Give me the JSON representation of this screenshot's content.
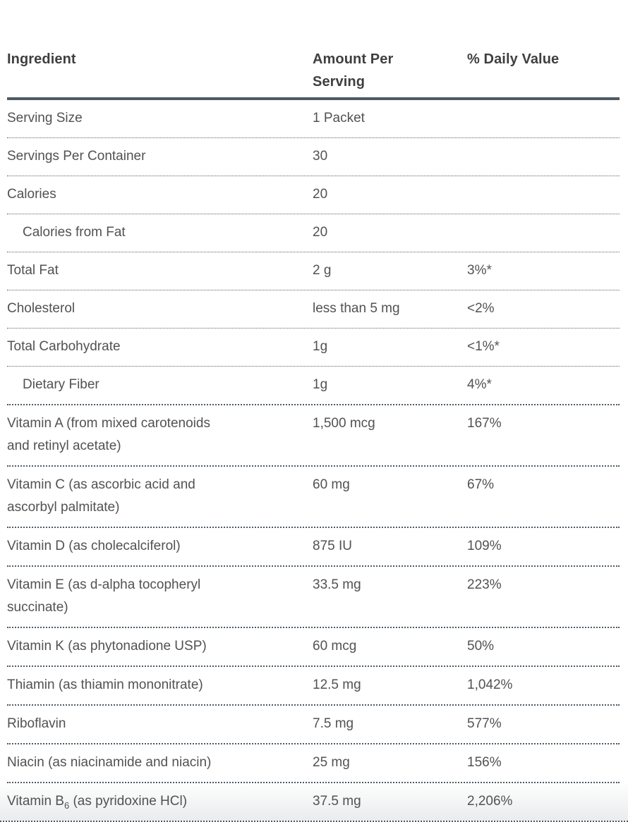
{
  "page": {
    "background": "#ffffff"
  },
  "colors": {
    "header_text": "#3f3f41",
    "body_text": "#525254",
    "header_rule": "#4e5a63",
    "divider_dots": "#55616b",
    "last_row_fade": "#e9ebec"
  },
  "table": {
    "columns": [
      {
        "id": "ingredient",
        "label": "Ingredient"
      },
      {
        "id": "amount",
        "label": "Amount Per\nServing"
      },
      {
        "id": "daily_value",
        "label": "% Daily Value"
      }
    ],
    "rows": [
      {
        "ingredient": "Serving Size",
        "amount": "1 Packet",
        "daily_value": "",
        "indent": false,
        "divider": "thin",
        "faded": false
      },
      {
        "ingredient": "Servings Per Container",
        "amount": "30",
        "daily_value": "",
        "indent": false,
        "divider": "thin",
        "faded": false
      },
      {
        "ingredient": "Calories",
        "amount": "20",
        "daily_value": "",
        "indent": false,
        "divider": "thin",
        "faded": false
      },
      {
        "ingredient": "Calories from Fat",
        "amount": "20",
        "daily_value": "",
        "indent": true,
        "divider": "thin",
        "faded": false
      },
      {
        "ingredient": "Total Fat",
        "amount": "2 g",
        "daily_value": "3%*",
        "indent": false,
        "divider": "thin",
        "faded": false
      },
      {
        "ingredient": "Cholesterol",
        "amount": "less than 5 mg",
        "daily_value": "<2%",
        "indent": false,
        "divider": "thin",
        "faded": false
      },
      {
        "ingredient": "Total Carbohydrate",
        "amount": "1g",
        "daily_value": "<1%*",
        "indent": false,
        "divider": "thin",
        "faded": false
      },
      {
        "ingredient": "Dietary Fiber",
        "amount": "1g",
        "daily_value": "4%*",
        "indent": true,
        "divider": "thick",
        "faded": false
      },
      {
        "ingredient": "Vitamin A (from mixed carotenoids\nand retinyl acetate)",
        "amount": "1,500 mcg",
        "daily_value": "167%",
        "indent": false,
        "divider": "thick",
        "faded": false
      },
      {
        "ingredient": "Vitamin C (as ascorbic acid and\nascorbyl palmitate)",
        "amount": "60 mg",
        "daily_value": "67%",
        "indent": false,
        "divider": "thick",
        "faded": false
      },
      {
        "ingredient": "Vitamin D (as cholecalciferol)",
        "amount": "875 IU",
        "daily_value": "109%",
        "indent": false,
        "divider": "thick",
        "faded": false
      },
      {
        "ingredient": "Vitamin E (as d-alpha tocopheryl\nsuccinate)",
        "amount": "33.5 mg",
        "daily_value": "223%",
        "indent": false,
        "divider": "thick",
        "faded": false
      },
      {
        "ingredient": "Vitamin K (as phytonadione USP)",
        "amount": "60 mcg",
        "daily_value": "50%",
        "indent": false,
        "divider": "thick",
        "faded": false
      },
      {
        "ingredient": "Thiamin (as thiamin mononitrate)",
        "amount": "12.5 mg",
        "daily_value": "1,042%",
        "indent": false,
        "divider": "thick",
        "faded": false
      },
      {
        "ingredient": "Riboflavin",
        "amount": "7.5 mg",
        "daily_value": "577%",
        "indent": false,
        "divider": "thick",
        "faded": false
      },
      {
        "ingredient": "Niacin (as niacinamide and niacin)",
        "amount": "25 mg",
        "daily_value": "156%",
        "indent": false,
        "divider": "thick",
        "faded": false
      },
      {
        "ingredient": "Vitamin B{sub}6{/sub} (as pyridoxine HCl)",
        "amount": "37.5 mg",
        "daily_value": "2,206%",
        "indent": false,
        "divider": "thick",
        "faded": true
      }
    ]
  }
}
